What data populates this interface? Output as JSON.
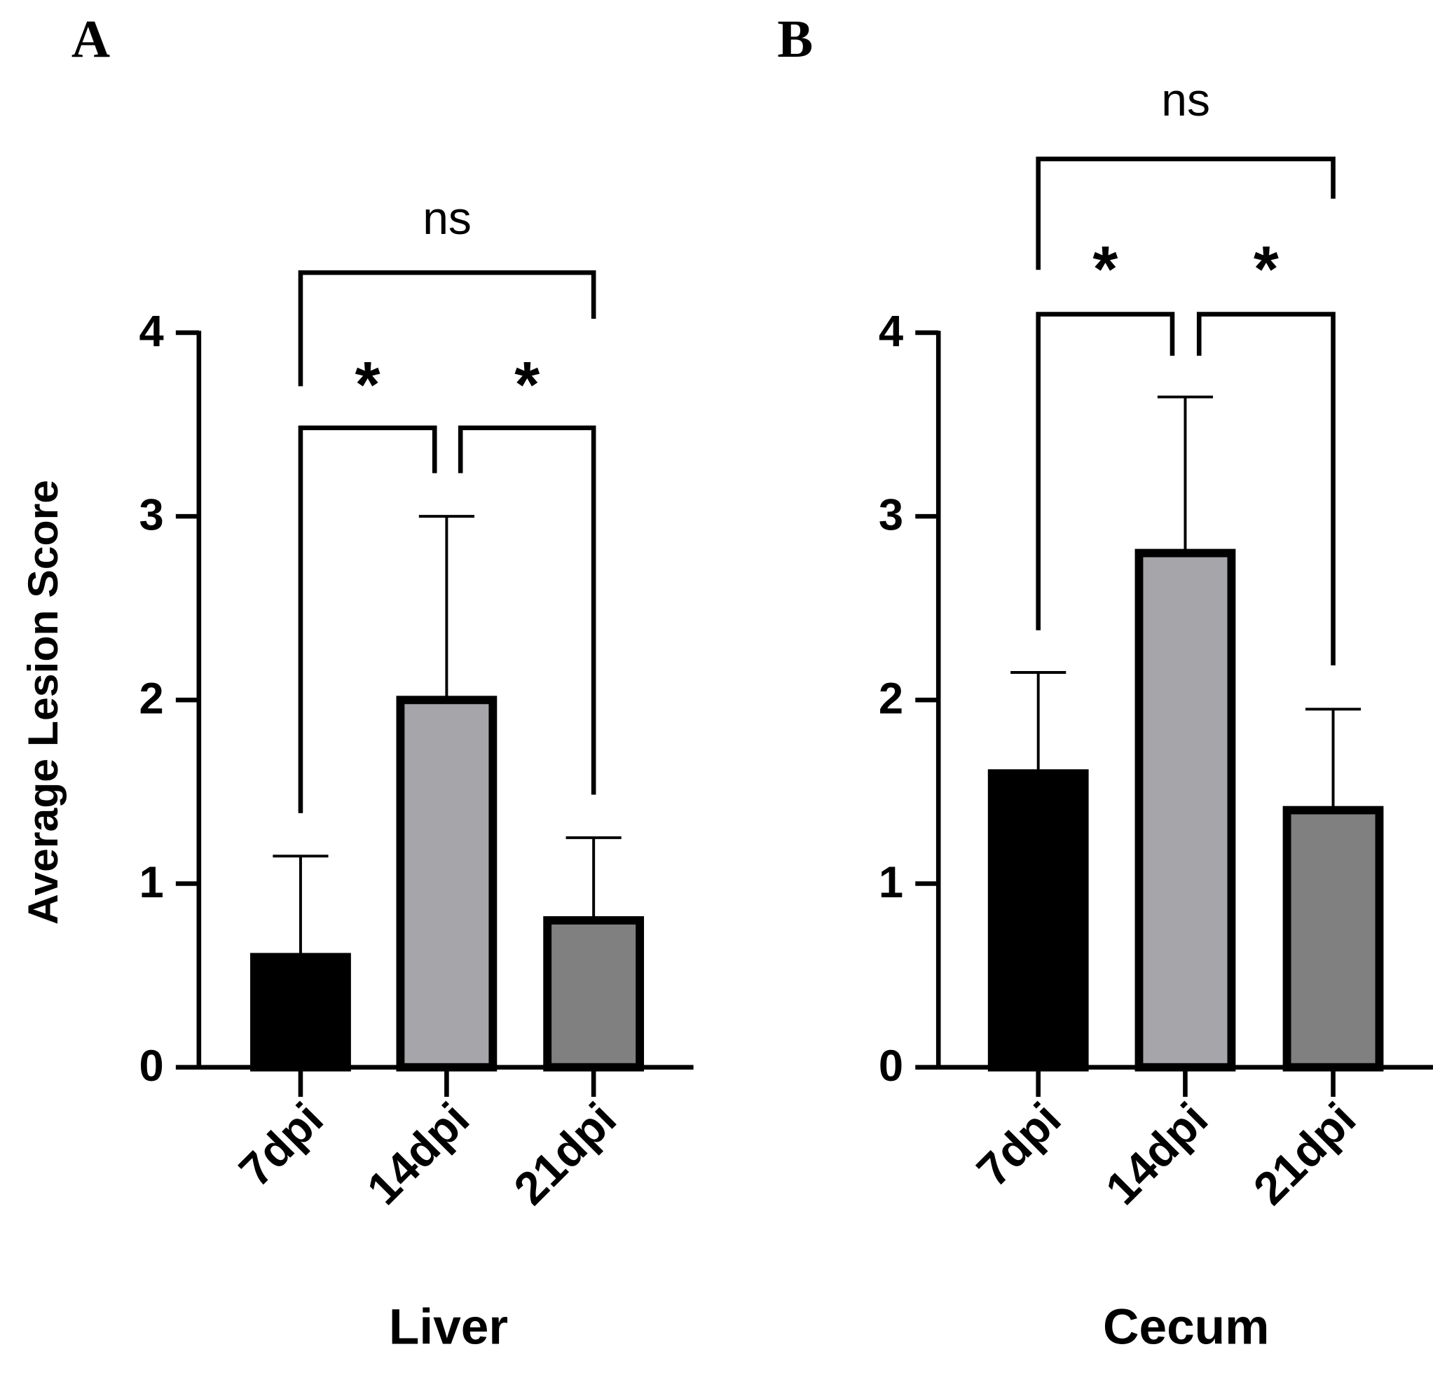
{
  "chart_data": [
    {
      "type": "bar",
      "panel_label": "A",
      "xlabel": "Liver",
      "ylabel": "Average Lesion Score",
      "categories": [
        "7dpi",
        "14dpi",
        "21dpi"
      ],
      "values": [
        0.6,
        2.0,
        0.8
      ],
      "errors": [
        0.55,
        1.0,
        0.45
      ],
      "colors": [
        "#000000",
        "#a6a6aa",
        "#808080"
      ],
      "ylim": [
        0,
        4
      ],
      "yticks": [
        0,
        1,
        2,
        3,
        4
      ],
      "annotations": [
        {
          "from": 0,
          "to": 1,
          "label": "*"
        },
        {
          "from": 1,
          "to": 2,
          "label": "*"
        },
        {
          "from": 0,
          "to": 2,
          "label": "ns"
        }
      ]
    },
    {
      "type": "bar",
      "panel_label": "B",
      "xlabel": "Cecum",
      "categories": [
        "7dpi",
        "14dpi",
        "21dpi"
      ],
      "values": [
        1.6,
        2.8,
        1.4
      ],
      "errors": [
        0.55,
        0.85,
        0.55
      ],
      "colors": [
        "#000000",
        "#a6a6aa",
        "#808080"
      ],
      "ylim": [
        0,
        4
      ],
      "yticks": [
        0,
        1,
        2,
        3,
        4
      ],
      "annotations": [
        {
          "from": 0,
          "to": 1,
          "label": "*"
        },
        {
          "from": 1,
          "to": 2,
          "label": "*"
        },
        {
          "from": 0,
          "to": 2,
          "label": "ns"
        }
      ]
    }
  ]
}
